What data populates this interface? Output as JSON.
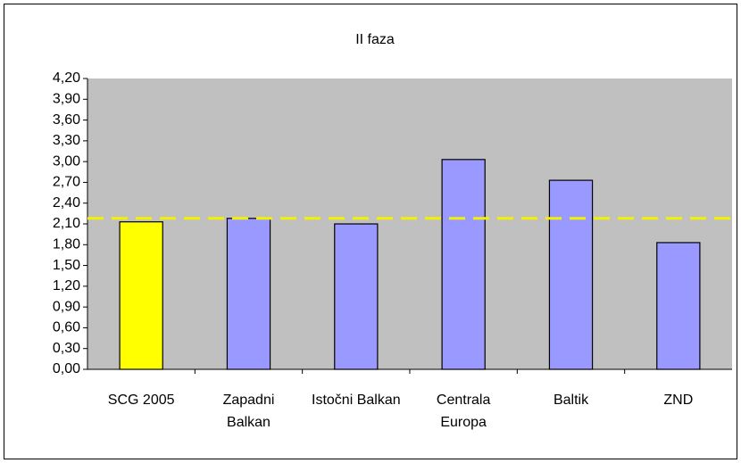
{
  "chart_data": {
    "type": "bar",
    "title": "II faza",
    "categories": [
      "SCG 2005",
      "Zapadni Balkan",
      "Istočni Balkan",
      "Centrala Europa",
      "Baltik",
      "ZND"
    ],
    "values": [
      2.13,
      2.18,
      2.1,
      3.03,
      2.73,
      1.83
    ],
    "colors": [
      "#ffff00",
      "#9999ff",
      "#9999ff",
      "#9999ff",
      "#9999ff",
      "#9999ff"
    ],
    "reference_line": {
      "value": 2.18,
      "color": "#f2f200"
    },
    "ylim": [
      0,
      4.2
    ],
    "yticks": [
      {
        "value": 0,
        "label": "0,00"
      },
      {
        "value": 0.3,
        "label": "0,30"
      },
      {
        "value": 0.6,
        "label": "0,60"
      },
      {
        "value": 0.9,
        "label": "0,90"
      },
      {
        "value": 1.2,
        "label": "1,20"
      },
      {
        "value": 1.5,
        "label": "1,50"
      },
      {
        "value": 1.8,
        "label": "1,80"
      },
      {
        "value": 2.1,
        "label": "2,10"
      },
      {
        "value": 2.4,
        "label": "2,40"
      },
      {
        "value": 2.7,
        "label": "2,70"
      },
      {
        "value": 3.0,
        "label": "3,00"
      },
      {
        "value": 3.3,
        "label": "3,30"
      },
      {
        "value": 3.6,
        "label": "3,60"
      },
      {
        "value": 3.9,
        "label": "3,90"
      },
      {
        "value": 4.2,
        "label": "4,20"
      }
    ],
    "grid": false
  }
}
